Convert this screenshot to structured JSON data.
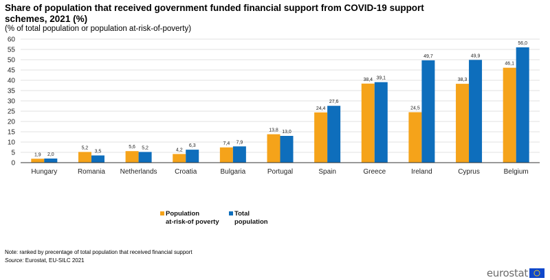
{
  "title": "Share of population that received government funded financial support from COVID-19 support schemes, 2021 (%)",
  "subtitle": "(% of total population or population at-risk-of-poverty)",
  "note": "Note: ranked by precentage of total population that received financial support",
  "source_label": "Source:",
  "source_text": " Eurostat, EU-SILC 2021",
  "logo_text": "eurostat",
  "colors": {
    "at_risk": "#f5a31a",
    "total": "#0e6ebc",
    "grid": "#e2e2e2",
    "axis": "#333333"
  },
  "chart_data": {
    "type": "bar",
    "categories": [
      "Hungary",
      "Romania",
      "Netherlands",
      "Croatia",
      "Bulgaria",
      "Portugal",
      "Spain",
      "Greece",
      "Ireland",
      "Cyprus",
      "Belgium"
    ],
    "series": [
      {
        "name": "Population at-risk-of poverty",
        "legend_lines": [
          "Population",
          "at-risk-of poverty"
        ],
        "values": [
          1.9,
          5.2,
          5.6,
          4.2,
          7.4,
          13.8,
          24.4,
          38.4,
          24.5,
          38.3,
          46.1
        ],
        "labels": [
          "1,9",
          "5,2",
          "5,6",
          "4,2",
          "7,4",
          "13,8",
          "24,4",
          "38,4",
          "24,5",
          "38,3",
          "46,1"
        ]
      },
      {
        "name": "Total population",
        "legend_lines": [
          "Total",
          "population"
        ],
        "values": [
          2.0,
          3.5,
          5.2,
          6.3,
          7.9,
          13.0,
          27.6,
          39.1,
          49.7,
          49.9,
          56.0
        ],
        "labels": [
          "2,0",
          "3,5",
          "5,2",
          "6,3",
          "7,9",
          "13,0",
          "27,6",
          "39,1",
          "49,7",
          "49,9",
          "56,0"
        ]
      }
    ],
    "ylim": [
      0,
      60
    ],
    "yticks": [
      0,
      5,
      10,
      15,
      20,
      25,
      30,
      35,
      40,
      45,
      50,
      55,
      60
    ],
    "grid": true,
    "legend_position": "bottom-center"
  }
}
